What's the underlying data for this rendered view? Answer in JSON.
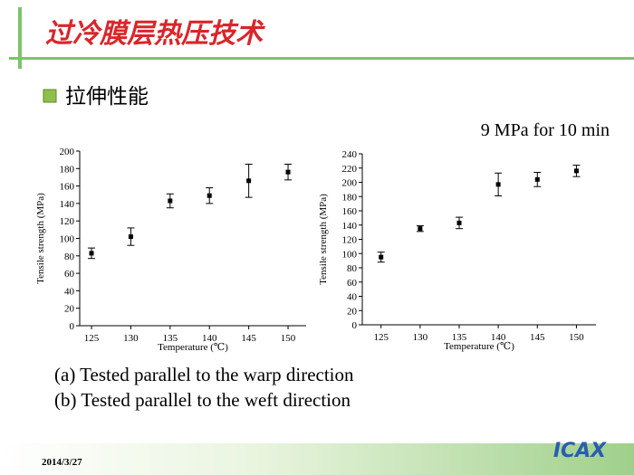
{
  "slide": {
    "title": "过冷膜层热压技术",
    "bullet": "拉伸性能",
    "condition": "9 MPa for 10 min",
    "captions": [
      "(a) Tested parallel to the warp direction",
      "(b) Tested parallel to the weft direction"
    ],
    "date": "2014/3/27",
    "logo": "ICAX"
  },
  "chart_data": [
    {
      "type": "scatter",
      "x": [
        125,
        130,
        135,
        140,
        145,
        150
      ],
      "series": [
        {
          "color": "#000000",
          "values": [
            83,
            102,
            143,
            149,
            166,
            176
          ],
          "errors": [
            6,
            10,
            8,
            9,
            19,
            9
          ]
        }
      ],
      "xlim": [
        123.5,
        152.3
      ],
      "xticks": [
        125,
        130,
        135,
        140,
        145,
        150
      ],
      "ylim": [
        0,
        200
      ],
      "yticks": [
        0,
        20,
        40,
        60,
        80,
        100,
        120,
        140,
        160,
        180,
        200
      ],
      "xlabel": "Temperature (℃)",
      "ylabel": "Tensile strength (MPa)"
    },
    {
      "type": "scatter",
      "x": [
        125,
        130,
        135,
        140,
        145,
        150
      ],
      "series": [
        {
          "color": "#000000",
          "values": [
            95,
            135,
            143,
            197,
            204,
            216
          ],
          "errors": [
            7,
            4,
            8,
            16,
            10,
            8
          ]
        }
      ],
      "xlim": [
        122.6,
        152.5
      ],
      "xticks": [
        125,
        130,
        135,
        140,
        145,
        150
      ],
      "ylim": [
        0,
        240
      ],
      "yticks": [
        0,
        20,
        40,
        60,
        80,
        100,
        120,
        140,
        160,
        180,
        200,
        220,
        240
      ],
      "xlabel": "Temperature (℃)",
      "ylabel": "Tensile strength (MPa)"
    }
  ]
}
